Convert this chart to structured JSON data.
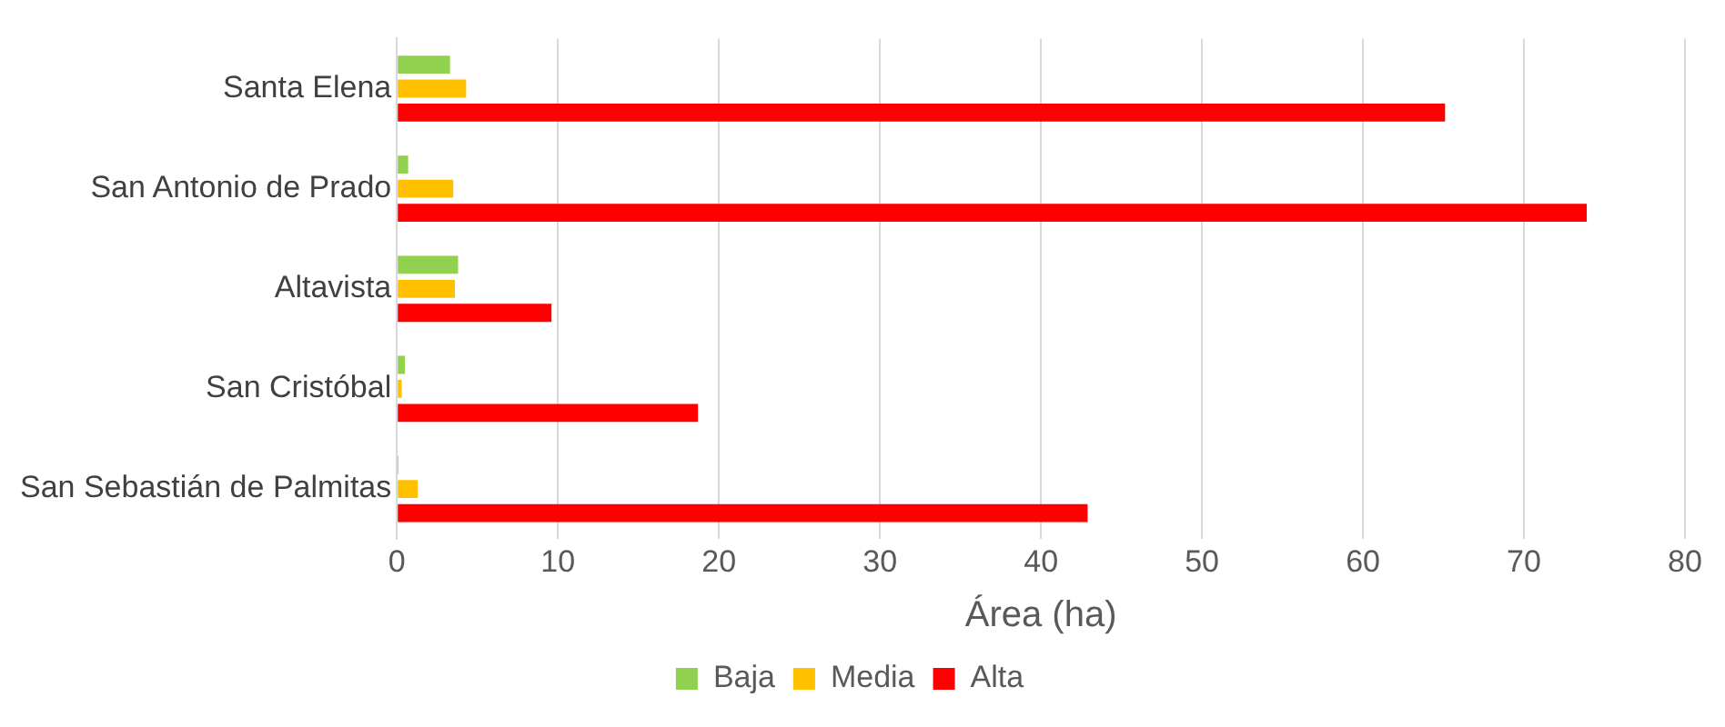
{
  "chart_data": {
    "type": "bar",
    "orientation": "horizontal",
    "xlabel": "Área (ha)",
    "categories": [
      "Santa Elena",
      "San Antonio de Prado",
      "Altavista",
      "San Cristóbal",
      "San Sebastián de Palmitas"
    ],
    "series": [
      {
        "name": "Baja",
        "color": "#92d050",
        "values": [
          3.3,
          0.7,
          3.8,
          0.5,
          0.1
        ]
      },
      {
        "name": "Media",
        "color": "#ffc000",
        "values": [
          4.3,
          3.5,
          3.6,
          0.3,
          1.3
        ]
      },
      {
        "name": "Alta",
        "color": "#ff0000",
        "values": [
          65.1,
          73.9,
          9.6,
          18.7,
          42.9
        ]
      }
    ],
    "xlim": [
      0,
      80
    ],
    "xticks": [
      0,
      10,
      20,
      30,
      40,
      50,
      60,
      70,
      80
    ],
    "grid": "x",
    "legend": "bottom"
  }
}
